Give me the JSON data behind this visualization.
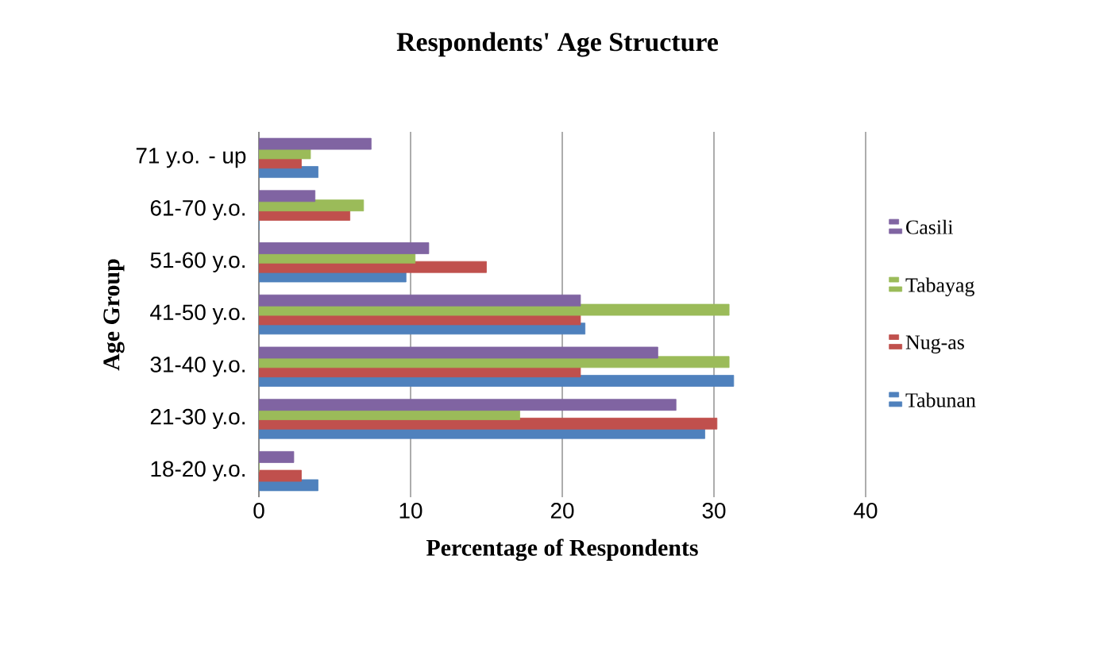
{
  "chart_data": {
    "type": "bar",
    "orientation": "horizontal",
    "title": "Respondents' Age Structure",
    "xlabel": "Percentage of Respondents",
    "ylabel": "Age Group",
    "categories": [
      "71 y.o. - up",
      "61-70 y.o.",
      "51-60 y.o.",
      "41-50 y.o.",
      "31-40 y.o.",
      "21-30 y.o.",
      "18-20 y.o."
    ],
    "series": [
      {
        "name": "Tabunan",
        "color": "#4f81bd",
        "values": [
          3.9,
          0,
          9.7,
          21.5,
          31.3,
          29.4,
          3.9
        ]
      },
      {
        "name": "Nug-as",
        "color": "#c0504d",
        "values": [
          2.8,
          6.0,
          15.0,
          21.2,
          21.2,
          30.2,
          2.8
        ]
      },
      {
        "name": "Tabayag",
        "color": "#9bbb59",
        "values": [
          3.4,
          6.9,
          10.3,
          31.0,
          31.0,
          17.2,
          0
        ]
      },
      {
        "name": "Casili",
        "color": "#8064a2",
        "values": [
          7.4,
          3.7,
          11.2,
          21.2,
          26.3,
          27.5,
          2.3
        ]
      }
    ],
    "xlim": [
      0,
      40
    ],
    "xticks": [
      0,
      10,
      20,
      30,
      40
    ],
    "grid": "x",
    "legend": "right"
  }
}
